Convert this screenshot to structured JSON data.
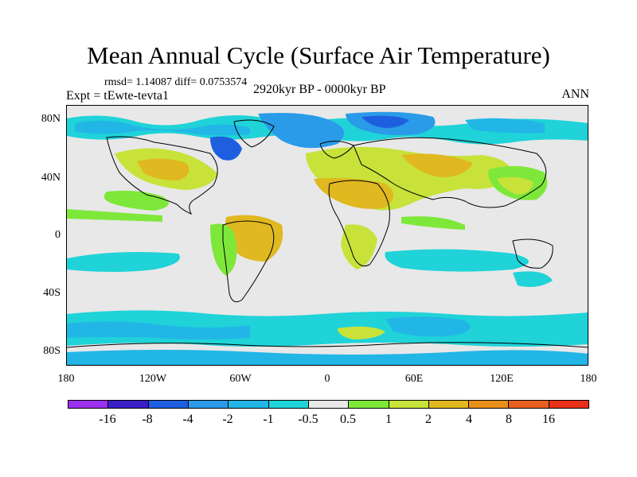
{
  "title": "Mean Annual Cycle (Surface Air Temperature)",
  "stats": "rmsd= 1.14087 diff= 0.0753574",
  "experiment": "Expt = tEwte-tevta1",
  "period": "2920kyr BP - 0000kyr BP",
  "season": "ANN",
  "map": {
    "lat_labels": [
      "80N",
      "40N",
      "0",
      "40S",
      "80S"
    ],
    "lon_labels": [
      "180",
      "120W",
      "60W",
      "0",
      "60E",
      "120E",
      "180"
    ]
  },
  "colorbar": {
    "labels": [
      "-16",
      "-8",
      "-4",
      "-2",
      "-1",
      "-0.5",
      "0.5",
      "1",
      "2",
      "4",
      "8",
      "16"
    ],
    "colors": [
      "#9b30f0",
      "#3a1fc8",
      "#1e5fe0",
      "#2a9be8",
      "#22b6e6",
      "#1fd3d8",
      "#e8e8e8",
      "#7ee83a",
      "#c8e23a",
      "#e0b820",
      "#e8901a",
      "#e86020",
      "#e83018"
    ]
  }
}
